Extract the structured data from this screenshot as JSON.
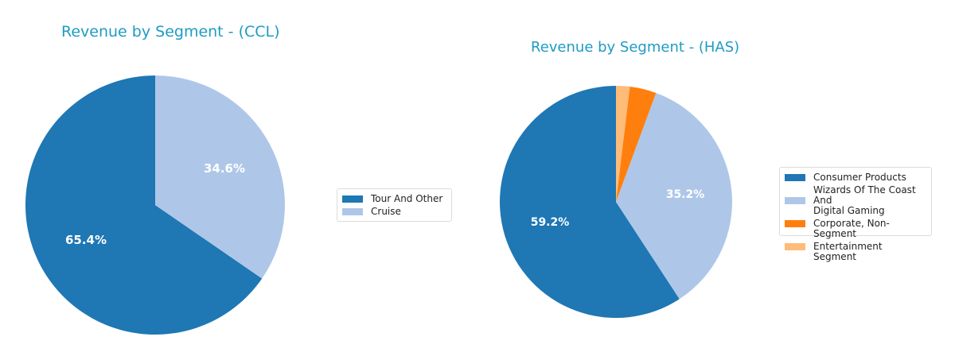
{
  "charts": [
    {
      "title": "Revenue by Segment - (CCL)",
      "legend": [
        {
          "label": "Tour And Other",
          "color": "#1f77b4"
        },
        {
          "label": "Cruise",
          "color": "#aec7e8"
        }
      ],
      "labels": [
        "65.4%",
        "34.6%"
      ]
    },
    {
      "title": "Revenue by Segment - (HAS)",
      "legend": [
        {
          "label": "Consumer Products",
          "color": "#1f77b4"
        },
        {
          "label": "Wizards Of The Coast And\nDigital Gaming",
          "color": "#aec7e8"
        },
        {
          "label": "Corporate, Non-Segment",
          "color": "#ff7f0e"
        },
        {
          "label": "Entertainment Segment",
          "color": "#ffbb78"
        }
      ],
      "labels": [
        "59.2%",
        "35.2%"
      ]
    }
  ],
  "chart_data": [
    {
      "type": "pie",
      "title": "Revenue by Segment - (CCL)",
      "categories": [
        "Tour And Other",
        "Cruise"
      ],
      "values": [
        65.4,
        34.6
      ],
      "colors": [
        "#1f77b4",
        "#aec7e8"
      ],
      "value_labels": [
        "65.4%",
        "34.6%"
      ],
      "legend_position": "right",
      "start_angle": 90,
      "counterclockwise": true
    },
    {
      "type": "pie",
      "title": "Revenue by Segment - (HAS)",
      "categories": [
        "Consumer Products",
        "Wizards Of The Coast And Digital Gaming",
        "Corporate, Non-Segment",
        "Entertainment Segment"
      ],
      "values": [
        59.2,
        35.2,
        3.7,
        1.9
      ],
      "colors": [
        "#1f77b4",
        "#aec7e8",
        "#ff7f0e",
        "#ffbb78"
      ],
      "value_labels": [
        "59.2%",
        "35.2%",
        "",
        ""
      ],
      "legend_position": "right",
      "start_angle": 90,
      "counterclockwise": true
    }
  ]
}
